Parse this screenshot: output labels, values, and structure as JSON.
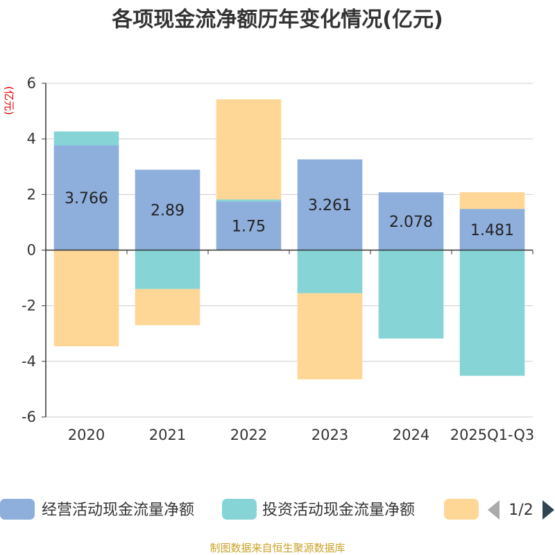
{
  "chart_data": {
    "type": "bar",
    "stacked": true,
    "title": "各项现金流净额历年变化情况(亿元)",
    "ylabel": "(亿元)",
    "categories": [
      "2020",
      "2021",
      "2022",
      "2023",
      "2024",
      "2025Q1-Q3"
    ],
    "ylim": [
      -6,
      6
    ],
    "yticks": [
      6,
      4,
      2,
      0,
      -2,
      -4,
      -6
    ],
    "grid": true,
    "series": [
      {
        "name": "经营活动现金流量净额",
        "color": "#8eaedb",
        "values": [
          3.766,
          2.89,
          1.75,
          3.261,
          2.078,
          1.481
        ],
        "show_labels": true
      },
      {
        "name": "投资活动现金流量净额",
        "color": "#86d4d6",
        "values": [
          0.5,
          -1.4,
          0.07,
          -1.55,
          -3.18,
          -4.52
        ],
        "show_labels": false
      },
      {
        "name": "",
        "color": "#fed797",
        "values": [
          -3.46,
          -1.3,
          3.6,
          -3.1,
          0.0,
          0.6
        ],
        "show_labels": false
      }
    ],
    "legend_position": "bottom",
    "legend_pager": "1/2",
    "source": "制图数据来自恒生聚源数据库"
  }
}
